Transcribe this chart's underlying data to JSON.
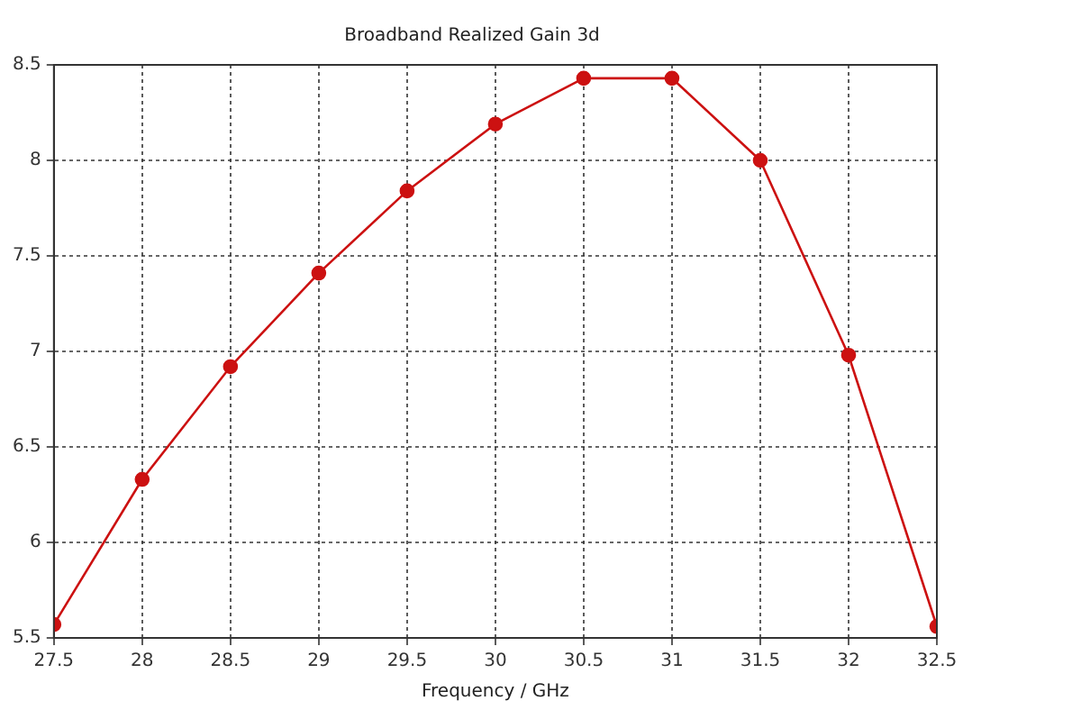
{
  "chart_data": {
    "type": "line",
    "title": "Broadband Realized Gain 3d",
    "xlabel": "Frequency / GHz",
    "x": [
      27.5,
      28,
      28.5,
      29,
      29.5,
      30,
      30.5,
      31,
      31.5,
      32,
      32.5
    ],
    "series": [
      {
        "color": "#cc1111",
        "values": [
          5.57,
          6.33,
          6.92,
          7.41,
          7.84,
          8.19,
          8.43,
          8.43,
          8.0,
          6.98,
          5.56
        ]
      }
    ],
    "xlim": [
      27.5,
      32.5
    ],
    "xticks": [
      27.5,
      28,
      28.5,
      29,
      29.5,
      30,
      30.5,
      31,
      31.5,
      32,
      32.5
    ],
    "ylim": [
      5.5,
      8.5
    ],
    "yticks": [
      5.5,
      6,
      6.5,
      7,
      7.5,
      8,
      8.5
    ],
    "grid": true,
    "marker": "circle",
    "line_style": "solid"
  }
}
